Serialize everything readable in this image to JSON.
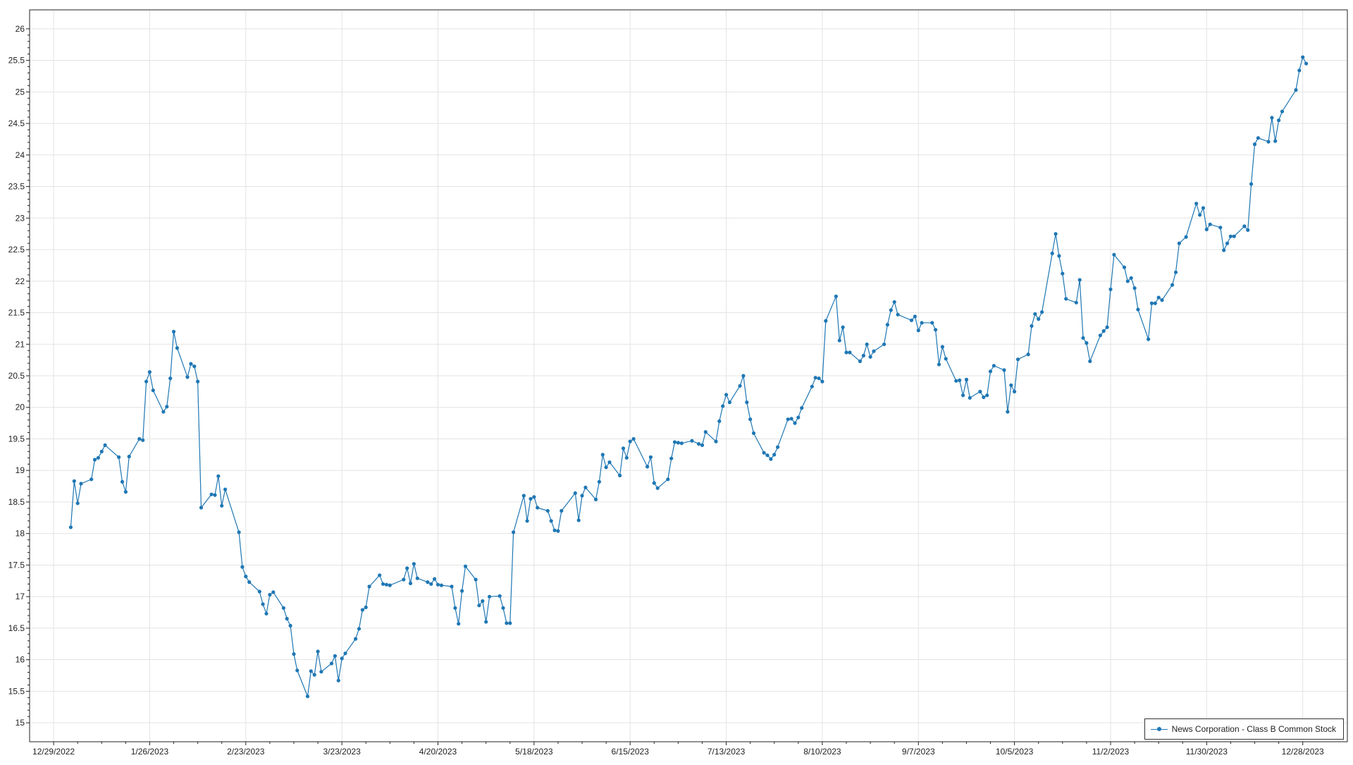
{
  "chart_data": {
    "type": "line",
    "title": "",
    "xlabel": "",
    "ylabel": "",
    "ylim": [
      14.7,
      26.3
    ],
    "yticks": [
      15,
      15.5,
      16,
      16.5,
      17,
      17.5,
      18,
      18.5,
      19,
      19.5,
      20,
      20.5,
      21,
      21.5,
      22,
      22.5,
      23,
      23.5,
      24,
      24.5,
      25,
      25.5,
      26
    ],
    "xlim": [
      "2022-12-22",
      "2024-01-10"
    ],
    "xticks": [
      "2022-12-29",
      "2023-01-26",
      "2023-02-23",
      "2023-03-23",
      "2023-04-20",
      "2023-05-18",
      "2023-06-15",
      "2023-07-13",
      "2023-08-10",
      "2023-09-07",
      "2023-10-05",
      "2023-11-02",
      "2023-11-30",
      "2023-12-28"
    ],
    "xtick_labels": [
      "12/29/2022",
      "1/26/2023",
      "2/23/2023",
      "3/23/2023",
      "4/20/2023",
      "5/18/2023",
      "6/15/2023",
      "7/13/2023",
      "8/10/2023",
      "9/7/2023",
      "10/5/2023",
      "11/2/2023",
      "11/30/2023",
      "12/28/2023"
    ],
    "grid": true,
    "legend_position": "bottom-right",
    "series": [
      {
        "name": "News Corporation - Class B Common Stock",
        "color": "#1f77b4",
        "x": [
          "2023-01-03",
          "2023-01-04",
          "2023-01-05",
          "2023-01-06",
          "2023-01-09",
          "2023-01-10",
          "2023-01-11",
          "2023-01-12",
          "2023-01-13",
          "2023-01-17",
          "2023-01-18",
          "2023-01-19",
          "2023-01-20",
          "2023-01-23",
          "2023-01-24",
          "2023-01-25",
          "2023-01-26",
          "2023-01-27",
          "2023-01-30",
          "2023-01-31",
          "2023-02-01",
          "2023-02-02",
          "2023-02-03",
          "2023-02-06",
          "2023-02-07",
          "2023-02-08",
          "2023-02-09",
          "2023-02-10",
          "2023-02-13",
          "2023-02-14",
          "2023-02-15",
          "2023-02-16",
          "2023-02-17",
          "2023-02-21",
          "2023-02-22",
          "2023-02-23",
          "2023-02-24",
          "2023-02-27",
          "2023-02-28",
          "2023-03-01",
          "2023-03-02",
          "2023-03-03",
          "2023-03-06",
          "2023-03-07",
          "2023-03-08",
          "2023-03-09",
          "2023-03-10",
          "2023-03-13",
          "2023-03-14",
          "2023-03-15",
          "2023-03-16",
          "2023-03-17",
          "2023-03-20",
          "2023-03-21",
          "2023-03-22",
          "2023-03-23",
          "2023-03-24",
          "2023-03-27",
          "2023-03-28",
          "2023-03-29",
          "2023-03-30",
          "2023-03-31",
          "2023-04-03",
          "2023-04-04",
          "2023-04-05",
          "2023-04-06",
          "2023-04-10",
          "2023-04-11",
          "2023-04-12",
          "2023-04-13",
          "2023-04-14",
          "2023-04-17",
          "2023-04-18",
          "2023-04-19",
          "2023-04-20",
          "2023-04-21",
          "2023-04-24",
          "2023-04-25",
          "2023-04-26",
          "2023-04-27",
          "2023-04-28",
          "2023-05-01",
          "2023-05-02",
          "2023-05-03",
          "2023-05-04",
          "2023-05-05",
          "2023-05-08",
          "2023-05-09",
          "2023-05-10",
          "2023-05-11",
          "2023-05-12",
          "2023-05-15",
          "2023-05-16",
          "2023-05-17",
          "2023-05-18",
          "2023-05-19",
          "2023-05-22",
          "2023-05-23",
          "2023-05-24",
          "2023-05-25",
          "2023-05-26",
          "2023-05-30",
          "2023-05-31",
          "2023-06-01",
          "2023-06-02",
          "2023-06-05",
          "2023-06-06",
          "2023-06-07",
          "2023-06-08",
          "2023-06-09",
          "2023-06-12",
          "2023-06-13",
          "2023-06-14",
          "2023-06-15",
          "2023-06-16",
          "2023-06-20",
          "2023-06-21",
          "2023-06-22",
          "2023-06-23",
          "2023-06-26",
          "2023-06-27",
          "2023-06-28",
          "2023-06-29",
          "2023-06-30",
          "2023-07-03",
          "2023-07-05",
          "2023-07-06",
          "2023-07-07",
          "2023-07-10",
          "2023-07-11",
          "2023-07-12",
          "2023-07-13",
          "2023-07-14",
          "2023-07-17",
          "2023-07-18",
          "2023-07-19",
          "2023-07-20",
          "2023-07-21",
          "2023-07-24",
          "2023-07-25",
          "2023-07-26",
          "2023-07-27",
          "2023-07-28",
          "2023-07-31",
          "2023-08-01",
          "2023-08-02",
          "2023-08-03",
          "2023-08-04",
          "2023-08-07",
          "2023-08-08",
          "2023-08-09",
          "2023-08-10",
          "2023-08-11",
          "2023-08-14",
          "2023-08-15",
          "2023-08-16",
          "2023-08-17",
          "2023-08-18",
          "2023-08-21",
          "2023-08-22",
          "2023-08-23",
          "2023-08-24",
          "2023-08-25",
          "2023-08-28",
          "2023-08-29",
          "2023-08-30",
          "2023-08-31",
          "2023-09-01",
          "2023-09-05",
          "2023-09-06",
          "2023-09-07",
          "2023-09-08",
          "2023-09-11",
          "2023-09-12",
          "2023-09-13",
          "2023-09-14",
          "2023-09-15",
          "2023-09-18",
          "2023-09-19",
          "2023-09-20",
          "2023-09-21",
          "2023-09-22",
          "2023-09-25",
          "2023-09-26",
          "2023-09-27",
          "2023-09-28",
          "2023-09-29",
          "2023-10-02",
          "2023-10-03",
          "2023-10-04",
          "2023-10-05",
          "2023-10-06",
          "2023-10-09",
          "2023-10-10",
          "2023-10-11",
          "2023-10-12",
          "2023-10-13",
          "2023-10-16",
          "2023-10-17",
          "2023-10-18",
          "2023-10-19",
          "2023-10-20",
          "2023-10-23",
          "2023-10-24",
          "2023-10-25",
          "2023-10-26",
          "2023-10-27",
          "2023-10-30",
          "2023-10-31",
          "2023-11-01",
          "2023-11-02",
          "2023-11-03",
          "2023-11-06",
          "2023-11-07",
          "2023-11-08",
          "2023-11-09",
          "2023-11-10",
          "2023-11-13",
          "2023-11-14",
          "2023-11-15",
          "2023-11-16",
          "2023-11-17",
          "2023-11-20",
          "2023-11-21",
          "2023-11-22",
          "2023-11-24",
          "2023-11-27",
          "2023-11-28",
          "2023-11-29",
          "2023-11-30",
          "2023-12-01",
          "2023-12-04",
          "2023-12-05",
          "2023-12-06",
          "2023-12-07",
          "2023-12-08",
          "2023-12-11",
          "2023-12-12",
          "2023-12-13",
          "2023-12-14",
          "2023-12-15",
          "2023-12-18",
          "2023-12-19",
          "2023-12-20",
          "2023-12-21",
          "2023-12-22",
          "2023-12-26",
          "2023-12-27",
          "2023-12-28",
          "2023-12-29"
        ],
        "y": [
          18.1,
          18.83,
          18.48,
          18.79,
          18.86,
          19.17,
          19.2,
          19.3,
          19.4,
          19.21,
          18.82,
          18.66,
          19.22,
          19.5,
          19.48,
          20.41,
          20.56,
          20.27,
          19.93,
          20.01,
          20.46,
          21.2,
          20.94,
          20.48,
          20.69,
          20.65,
          20.41,
          18.41,
          18.62,
          18.61,
          18.91,
          18.44,
          18.7,
          18.02,
          17.47,
          17.32,
          17.23,
          17.08,
          16.88,
          16.73,
          17.03,
          17.07,
          16.82,
          16.65,
          16.54,
          16.09,
          15.83,
          15.42,
          15.82,
          15.76,
          16.13,
          15.81,
          15.94,
          16.06,
          15.67,
          16.02,
          16.1,
          16.33,
          16.49,
          16.79,
          16.83,
          17.16,
          17.34,
          17.2,
          17.19,
          17.18,
          17.27,
          17.45,
          17.21,
          17.52,
          17.29,
          17.23,
          17.2,
          17.28,
          17.19,
          17.18,
          17.16,
          16.82,
          16.57,
          17.09,
          17.48,
          17.27,
          16.86,
          16.93,
          16.6,
          17.0,
          17.01,
          16.82,
          16.58,
          16.58,
          18.02,
          18.6,
          18.2,
          18.55,
          18.58,
          18.41,
          18.36,
          18.2,
          18.05,
          18.04,
          18.36,
          18.64,
          18.21,
          18.6,
          18.73,
          18.54,
          18.82,
          19.25,
          19.05,
          19.13,
          18.92,
          19.35,
          19.2,
          19.46,
          19.5,
          19.06,
          19.21,
          18.8,
          18.72,
          18.86,
          19.19,
          19.45,
          19.44,
          19.43,
          19.47,
          19.42,
          19.4,
          19.61,
          19.46,
          19.78,
          20.02,
          20.2,
          20.08,
          20.34,
          20.5,
          20.08,
          19.81,
          19.59,
          19.28,
          19.24,
          19.18,
          19.25,
          19.37,
          19.81,
          19.82,
          19.75,
          19.84,
          19.99,
          20.33,
          20.47,
          20.46,
          20.41,
          21.37,
          21.76,
          21.06,
          21.27,
          20.87,
          20.87,
          20.73,
          20.82,
          21.0,
          20.8,
          20.89,
          21.0,
          21.31,
          21.54,
          21.67,
          21.47,
          21.38,
          21.44,
          21.22,
          21.34,
          21.34,
          21.23,
          20.68,
          20.96,
          20.77,
          20.42,
          20.43,
          20.19,
          20.44,
          20.15,
          20.25,
          20.16,
          20.19,
          20.57,
          20.66,
          20.59,
          19.93,
          20.35,
          20.25,
          20.76,
          20.84,
          21.29,
          21.48,
          21.4,
          21.51,
          22.44,
          22.75,
          22.4,
          22.12,
          21.72,
          21.66,
          22.02,
          21.1,
          21.02,
          20.73,
          21.14,
          21.21,
          21.27,
          21.87,
          22.42,
          22.22,
          22.0,
          22.05,
          21.89,
          21.55,
          21.08,
          21.65,
          21.65,
          21.74,
          21.7,
          21.94,
          22.14,
          22.6,
          22.7,
          23.23,
          23.05,
          23.16,
          22.82,
          22.9,
          22.85,
          22.49,
          22.6,
          22.71,
          22.71,
          22.87,
          22.81,
          23.54,
          24.17,
          24.27,
          24.21,
          24.59,
          24.22,
          24.55,
          24.69,
          25.03,
          25.34,
          25.55,
          25.45
        ]
      }
    ]
  }
}
